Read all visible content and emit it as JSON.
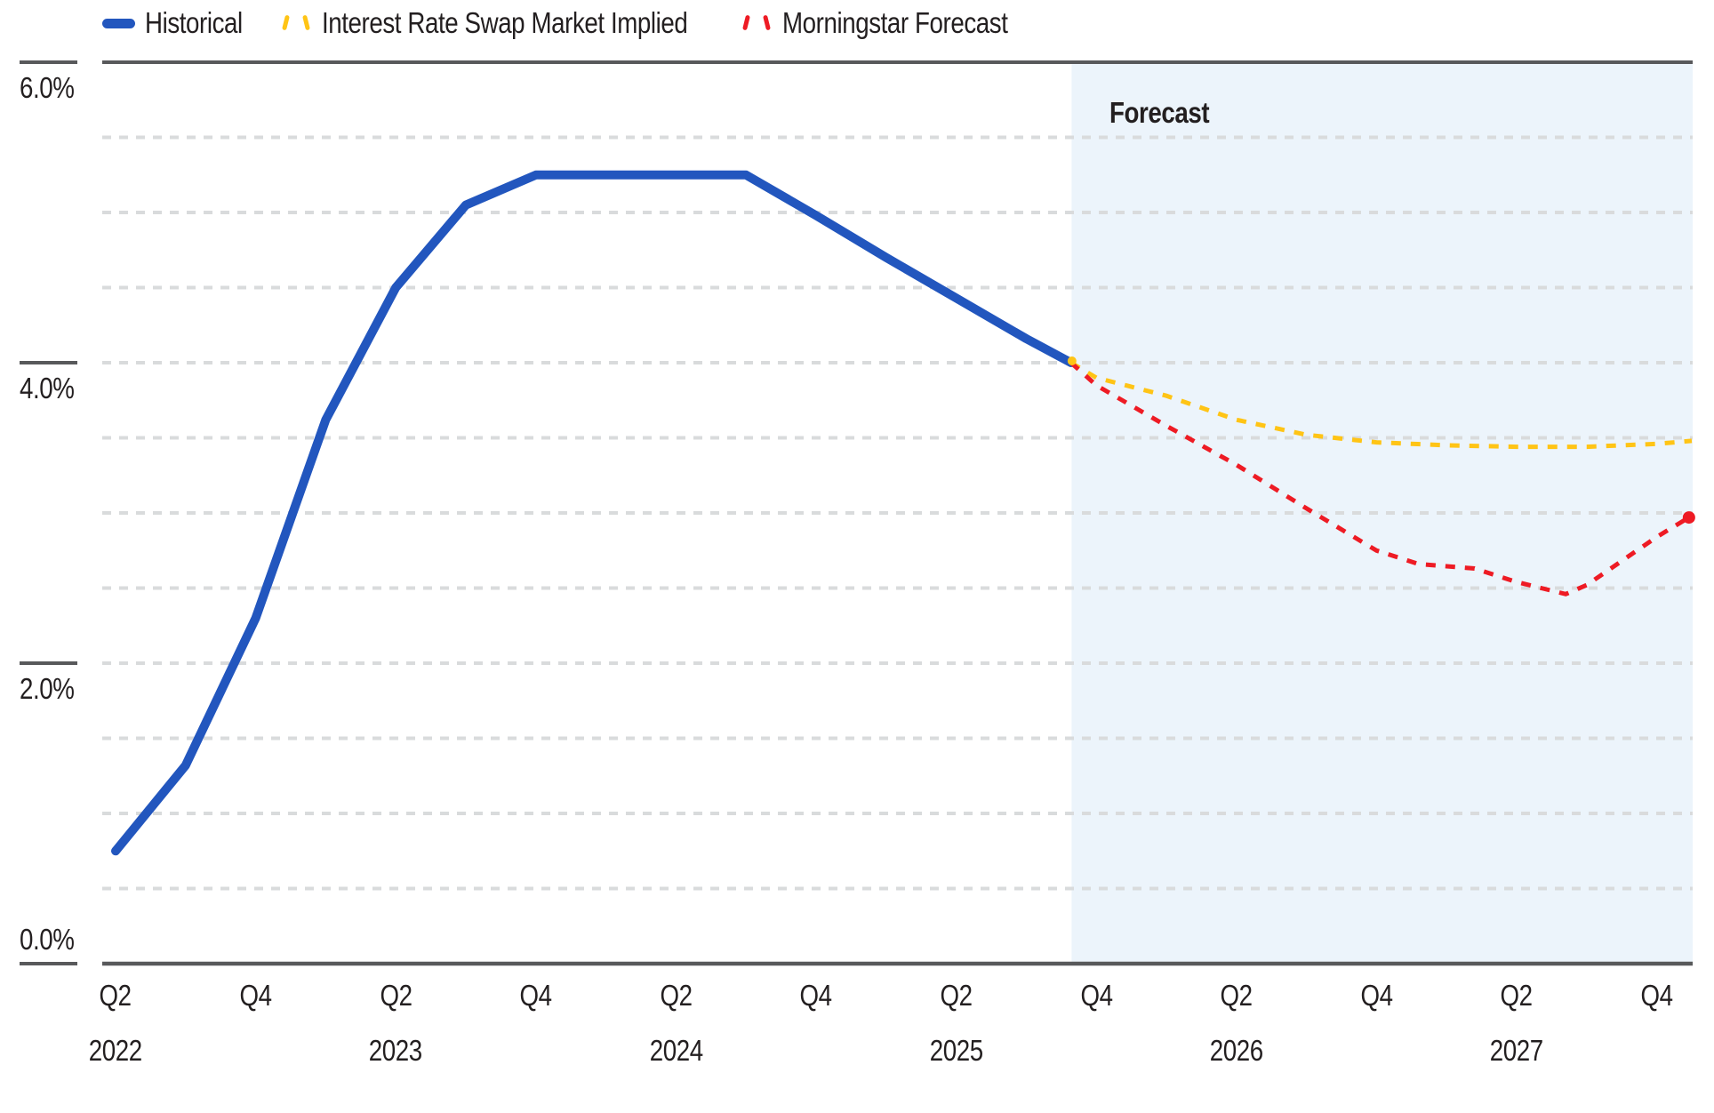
{
  "legend": {
    "items": [
      {
        "label": "Historical",
        "color": "#2256BE",
        "swatch": "solid-line"
      },
      {
        "label": "Interest Rate Swap Market Implied",
        "color": "#FFC415",
        "swatch": "dashed-line"
      },
      {
        "label": "Morningstar Forecast",
        "color": "#EE1B24",
        "swatch": "dashed-line"
      }
    ]
  },
  "plot": {
    "forecast_label": "Forecast"
  },
  "y_axis": {
    "ticks": [
      {
        "label": "6.0%",
        "value": 6.0
      },
      {
        "label": "4.0%",
        "value": 4.0
      },
      {
        "label": "2.0%",
        "value": 2.0
      },
      {
        "label": "0.0%",
        "value": 0.0
      }
    ],
    "minor_gridline_step": 0.5,
    "range": [
      0,
      6
    ]
  },
  "x_axis": {
    "ticks": [
      {
        "quarter": "Q2",
        "year": "2022"
      },
      {
        "quarter": "Q4",
        "year": ""
      },
      {
        "quarter": "Q2",
        "year": "2023"
      },
      {
        "quarter": "Q4",
        "year": ""
      },
      {
        "quarter": "Q2",
        "year": "2024"
      },
      {
        "quarter": "Q4",
        "year": ""
      },
      {
        "quarter": "Q2",
        "year": "2025"
      },
      {
        "quarter": "Q4",
        "year": ""
      },
      {
        "quarter": "Q2",
        "year": "2026"
      },
      {
        "quarter": "Q4",
        "year": ""
      },
      {
        "quarter": "Q2",
        "year": "2027"
      },
      {
        "quarter": "Q4",
        "year": ""
      }
    ]
  },
  "colors": {
    "historical": "#2256BE",
    "swap_implied": "#FFC415",
    "morningstar": "#EE1B24",
    "forecast_shade": "#ECF4FB",
    "grid_minor": "#D9DBDC",
    "axis_dark": "#58595B",
    "text": "#231F20"
  },
  "chart_data": {
    "type": "line",
    "title": "",
    "unit": "percent",
    "ylim": [
      0,
      6
    ],
    "y_major_ticks": [
      6.0,
      4.0,
      2.0,
      0.0
    ],
    "y_minor_gridline_step": 0.5,
    "x_quarter_index_origin": "2022Q2",
    "x_range": [
      "2022Q2",
      "2028Q1"
    ],
    "forecast_region_start_t": 13.64,
    "forecast_region_label": "Forecast",
    "legend_position": "top-left",
    "grid": "dashed-minor",
    "series": [
      {
        "name": "Historical",
        "style": "solid",
        "color": "#2256BE",
        "points": [
          [
            0,
            0.75,
            "2022Q2"
          ],
          [
            1,
            1.32,
            "2022Q3"
          ],
          [
            2,
            2.3,
            "2022Q4"
          ],
          [
            3,
            3.62,
            "2023Q1"
          ],
          [
            4,
            4.5,
            "2023Q2"
          ],
          [
            5,
            5.05,
            "2023Q3"
          ],
          [
            6,
            5.25,
            "2023Q4"
          ],
          [
            7,
            5.25,
            "2024Q1"
          ],
          [
            8,
            5.25,
            "2024Q2"
          ],
          [
            9,
            5.25,
            "2024Q3"
          ],
          [
            10,
            4.98,
            "2024Q4"
          ],
          [
            11,
            4.7,
            "2025Q1"
          ],
          [
            12,
            4.43,
            "2025Q2"
          ],
          [
            13,
            4.16,
            "2025Q3"
          ],
          [
            13.64,
            4.0,
            "2025Q4"
          ]
        ]
      },
      {
        "name": "Interest Rate Swap Market Implied",
        "style": "dashed",
        "color": "#FFC415",
        "start_marker": true,
        "points": [
          [
            13.64,
            4.0,
            "2025Q4"
          ],
          [
            14,
            3.9,
            "2025Q4"
          ],
          [
            15,
            3.78,
            "2026Q1"
          ],
          [
            16,
            3.62,
            "2026Q2"
          ],
          [
            17,
            3.52,
            "2026Q3"
          ],
          [
            18,
            3.47,
            "2026Q4"
          ],
          [
            19,
            3.45,
            "2027Q1"
          ],
          [
            20,
            3.44,
            "2027Q2"
          ],
          [
            21,
            3.44,
            "2027Q3"
          ],
          [
            22,
            3.46,
            "2027Q4"
          ],
          [
            22.5,
            3.48,
            "2028Q1"
          ]
        ]
      },
      {
        "name": "Morningstar Forecast",
        "style": "dashed",
        "color": "#EE1B24",
        "end_marker": true,
        "points": [
          [
            13.64,
            4.0,
            "2025Q4"
          ],
          [
            14,
            3.85,
            "2025Q4"
          ],
          [
            15,
            3.58,
            "2026Q1"
          ],
          [
            16,
            3.32,
            "2026Q2"
          ],
          [
            17,
            3.03,
            "2026Q3"
          ],
          [
            18,
            2.75,
            "2026Q4"
          ],
          [
            18.6,
            2.66,
            ""
          ],
          [
            19.4,
            2.63,
            "2027Q1"
          ],
          [
            20,
            2.54,
            "2027Q2"
          ],
          [
            20.7,
            2.46,
            ""
          ],
          [
            21,
            2.52,
            "2027Q3"
          ],
          [
            22,
            2.84,
            "2027Q4"
          ],
          [
            22.46,
            2.97,
            "2028Q1"
          ]
        ]
      }
    ]
  }
}
